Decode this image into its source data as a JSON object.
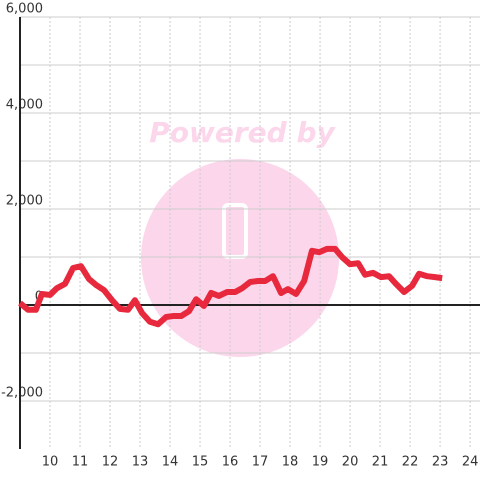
{
  "chart_data": {
    "type": "line",
    "watermark": "Powered by",
    "x": [
      9.0,
      9.27,
      9.53,
      9.73,
      10.0,
      10.23,
      10.5,
      10.77,
      11.03,
      11.3,
      11.53,
      11.8,
      12.07,
      12.33,
      12.6,
      12.83,
      13.07,
      13.33,
      13.6,
      13.87,
      14.1,
      14.37,
      14.63,
      14.87,
      15.13,
      15.37,
      15.63,
      15.9,
      16.17,
      16.4,
      16.67,
      16.93,
      17.17,
      17.43,
      17.7,
      17.93,
      18.2,
      18.47,
      18.73,
      18.97,
      19.23,
      19.5,
      19.73,
      20.0,
      20.27,
      20.5,
      20.77,
      21.03,
      21.3,
      21.53,
      21.8,
      22.07,
      22.3,
      22.57,
      22.83,
      23.07
    ],
    "series": [
      {
        "color": "#e8283c",
        "values": [
          40,
          -100,
          -100,
          230,
          210,
          350,
          440,
          770,
          810,
          540,
          420,
          310,
          100,
          -80,
          -100,
          100,
          -170,
          -350,
          -400,
          -250,
          -230,
          -230,
          -130,
          120,
          -20,
          250,
          190,
          270,
          270,
          350,
          480,
          500,
          500,
          600,
          250,
          330,
          230,
          500,
          1130,
          1100,
          1170,
          1170,
          1000,
          850,
          870,
          630,
          670,
          580,
          600,
          440,
          270,
          400,
          650,
          600,
          580,
          560
        ]
      }
    ],
    "xlim": [
      9,
      24.33
    ],
    "xticks": [
      10,
      11,
      12,
      13,
      14,
      15,
      16,
      17,
      18,
      19,
      20,
      21,
      22,
      23,
      24
    ],
    "ylim": [
      -3000,
      6000
    ],
    "yticks": [
      {
        "value": -2000,
        "label": "-2,000"
      },
      0,
      {
        "value": 2000,
        "label": "2,000"
      },
      {
        "value": 4000,
        "label": "4,000"
      },
      {
        "value": 6000,
        "label": "6,000"
      }
    ],
    "grid": true,
    "minor_grid": true
  }
}
